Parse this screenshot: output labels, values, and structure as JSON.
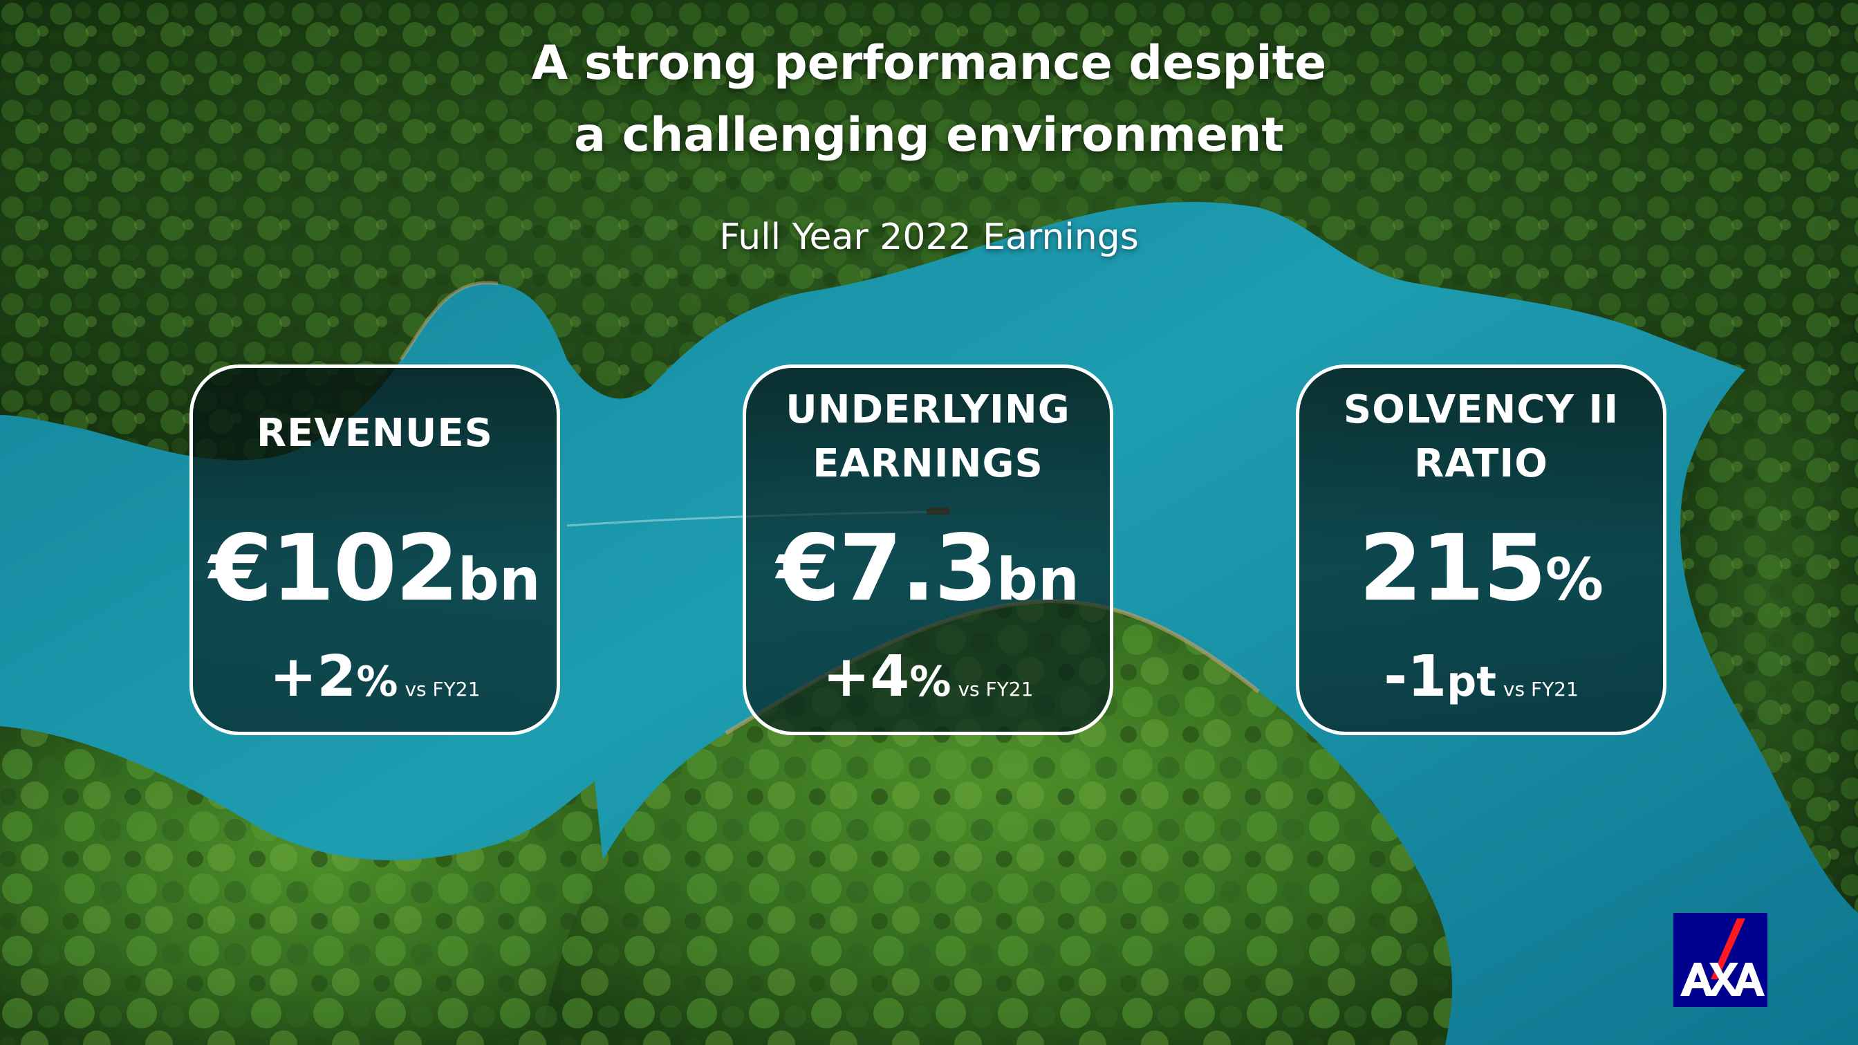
{
  "slide": {
    "title_lines": [
      "A strong performance despite",
      "a challenging environment"
    ],
    "subtitle": "Full Year 2022 Earnings"
  },
  "kpis": [
    {
      "label_lines": [
        "REVENUES"
      ],
      "value": "€102",
      "value_unit": "bn",
      "change": "+2",
      "change_unit": "%",
      "comparison": "vs FY21"
    },
    {
      "label_lines": [
        "UNDERLYING",
        "EARNINGS"
      ],
      "value": "€7.3",
      "value_unit": "bn",
      "change": "+4",
      "change_unit": "%",
      "comparison": "vs FY21"
    },
    {
      "label_lines": [
        "SOLVENCY II",
        "RATIO"
      ],
      "value": "215",
      "value_unit": "%",
      "change": "-1",
      "change_unit": "pt",
      "comparison": "vs FY21"
    }
  ],
  "logo": {
    "text": "AXA",
    "background_color": "#00008f",
    "slash_color": "#ff1721"
  },
  "colors": {
    "water": "#1e8fa3",
    "forest": "#2f5a22",
    "card_border": "#ffffff"
  }
}
